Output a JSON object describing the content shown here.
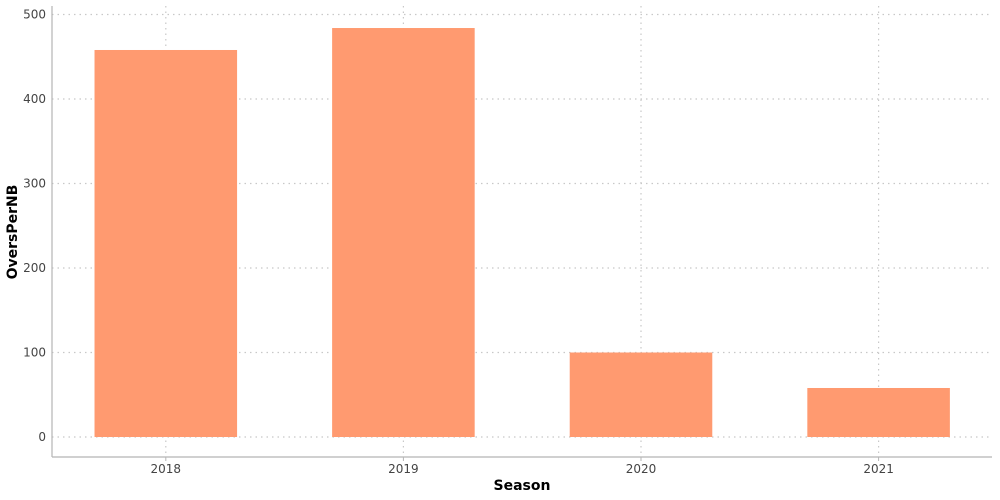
{
  "chart_data": {
    "type": "bar",
    "categories": [
      "2018",
      "2019",
      "2020",
      "2021"
    ],
    "values": [
      458,
      484,
      100,
      58
    ],
    "xlabel": "Season",
    "ylabel": "OversPerNB",
    "ylim": [
      0,
      500
    ],
    "yticks": [
      0,
      100,
      200,
      300,
      400,
      500
    ],
    "grid": true,
    "bar_color": "#ff9a70"
  }
}
